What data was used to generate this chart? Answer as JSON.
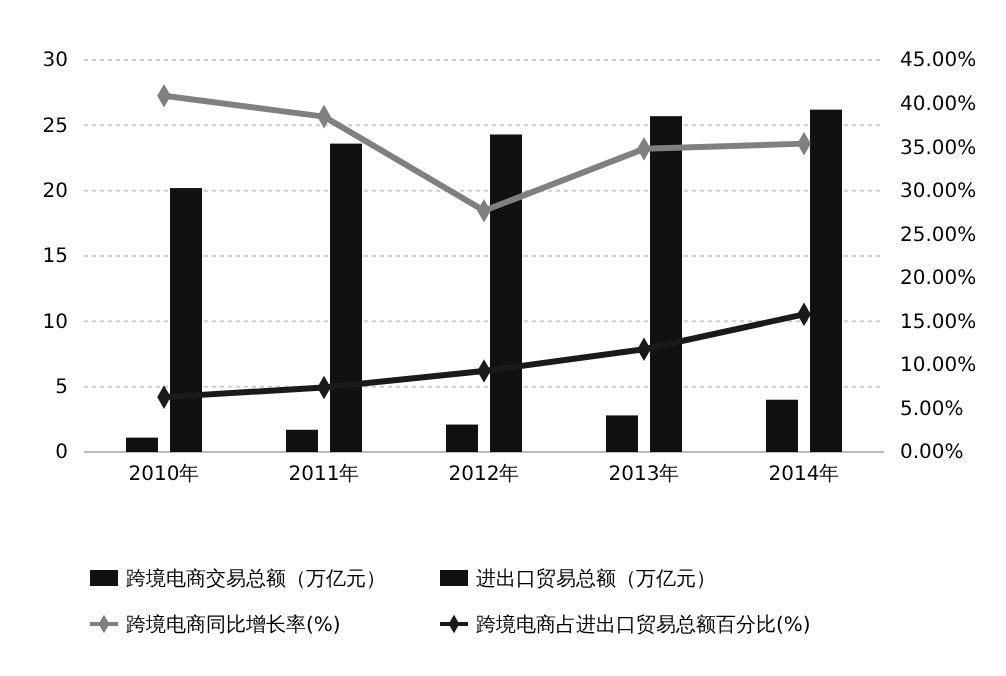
{
  "chart_data": {
    "type": "bar",
    "categories": [
      "2010年",
      "2011年",
      "2012年",
      "2013年",
      "2014年"
    ],
    "series": [
      {
        "name": "跨境电商交易总额（万亿元）",
        "color": "#111111",
        "values": [
          1.1,
          1.7,
          2.1,
          2.8,
          4.0
        ]
      },
      {
        "name": "进出口贸易总额（万亿元）",
        "color": "#111111",
        "values": [
          20.2,
          23.6,
          24.3,
          25.7,
          26.2
        ]
      },
      {
        "name": "跨境电商同比增长率(%)",
        "type": "line",
        "axis": "y2",
        "color": "#808080",
        "values": [
          40.9,
          38.5,
          27.7,
          34.8,
          35.4
        ]
      },
      {
        "name": "跨境电商占进出口贸易总额百分比(%)",
        "type": "line",
        "axis": "y2",
        "color": "#1a1a1a",
        "values": [
          6.3,
          7.4,
          9.3,
          11.8,
          15.8
        ]
      }
    ],
    "ylim": [
      0,
      30
    ],
    "yticks": [
      0,
      5,
      10,
      15,
      20,
      25,
      30
    ],
    "y2lim": [
      0,
      45
    ],
    "y2ticks": [
      {
        "value": 0,
        "label": "0.00%"
      },
      {
        "value": 5,
        "label": "5.00%"
      },
      {
        "value": 10,
        "label": "10.00%"
      },
      {
        "value": 15,
        "label": "15.00%"
      },
      {
        "value": 20,
        "label": "20.00%"
      },
      {
        "value": 25,
        "label": "25.00%"
      },
      {
        "value": 30,
        "label": "30.00%"
      },
      {
        "value": 35,
        "label": "35.00%"
      },
      {
        "value": 40,
        "label": "40.00%"
      },
      {
        "value": 45,
        "label": "45.00%"
      }
    ],
    "grid": "y",
    "legend": "bottom",
    "marker": "diamond",
    "line_style": "solid"
  }
}
